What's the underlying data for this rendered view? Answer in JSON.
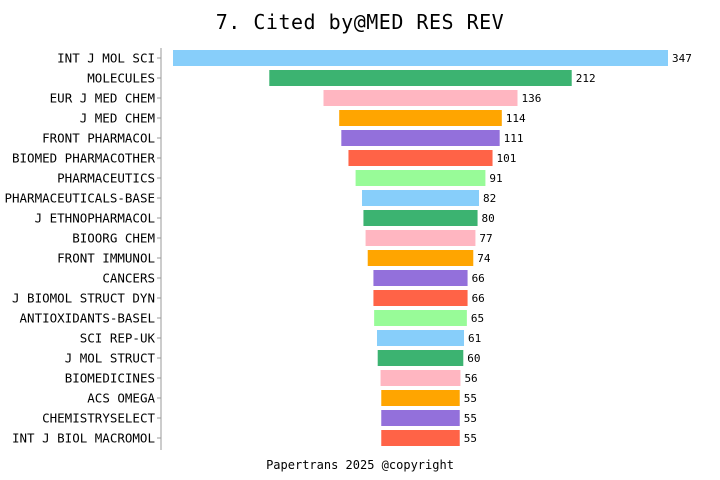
{
  "title": "7. Cited by@MED RES REV",
  "footer": "Papertrans 2025 @copyright",
  "chart_data": {
    "type": "bar",
    "orientation": "horizontal",
    "layout": "centered-funnel",
    "title": "7. Cited by@MED RES REV",
    "xlabel": "",
    "ylabel": "",
    "grid": false,
    "legend": "none",
    "categories": [
      "INT J MOL SCI",
      "MOLECULES",
      "EUR J MED CHEM",
      "J MED CHEM",
      "FRONT PHARMACOL",
      "BIOMED PHARMACOTHER",
      "PHARMACEUTICS",
      "PHARMACEUTICALS-BASE",
      "J ETHNOPHARMACOL",
      "BIOORG CHEM",
      "FRONT IMMUNOL",
      "CANCERS",
      "J BIOMOL STRUCT DYN",
      "ANTIOXIDANTS-BASEL",
      "SCI REP-UK",
      "J MOL STRUCT",
      "BIOMEDICINES",
      "ACS OMEGA",
      "CHEMISTRYSELECT",
      "INT J BIOL MACROMOL"
    ],
    "values": [
      347,
      212,
      136,
      114,
      111,
      101,
      91,
      82,
      80,
      77,
      74,
      66,
      66,
      65,
      61,
      60,
      56,
      55,
      55,
      55
    ],
    "colors": [
      "#87cefa",
      "#3cb371",
      "#ffb6c1",
      "#ffa500",
      "#9370db",
      "#ff6347",
      "#98fb98"
    ]
  }
}
